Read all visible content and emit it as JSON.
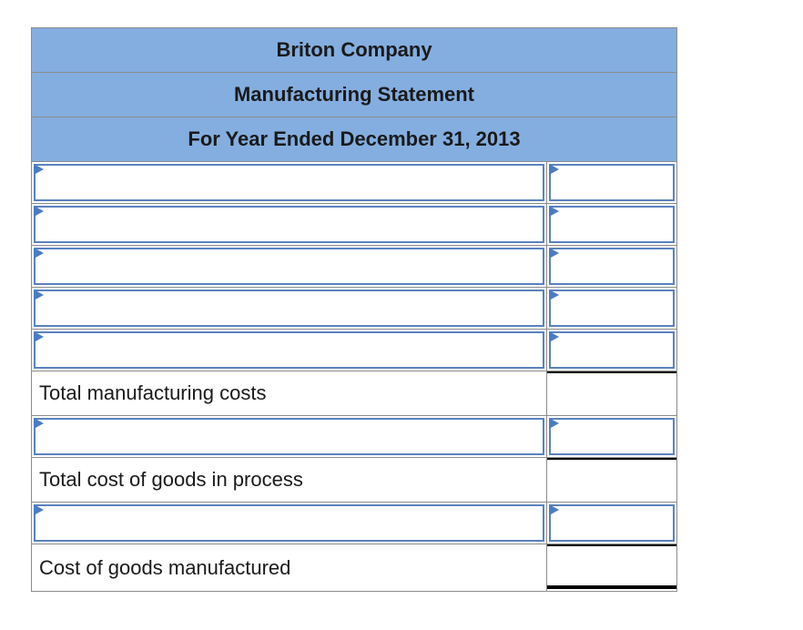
{
  "statement": {
    "company": "Briton Company",
    "title": "Manufacturing Statement",
    "period": "For Year Ended December 31, 2013"
  },
  "rows": {
    "total_manufacturing_costs": "Total manufacturing costs",
    "total_cost_goods_in_process": "Total cost of goods in process",
    "cost_goods_manufactured": "Cost of goods manufactured"
  },
  "colors": {
    "header_bg": "#84aee0",
    "input_border": "#5a82bf",
    "dropdown_marker": "#4a7cc4"
  }
}
